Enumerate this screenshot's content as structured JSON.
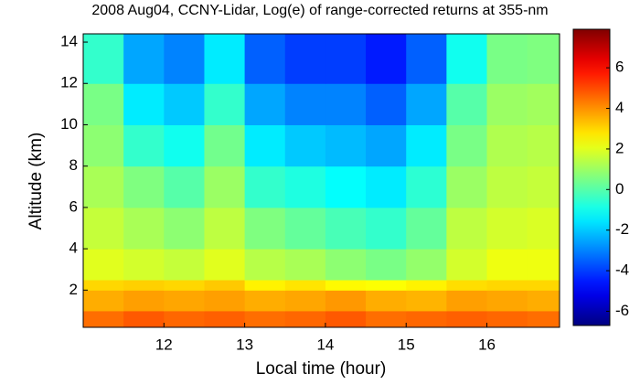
{
  "chart_data": {
    "type": "heatmap",
    "title": "2008 Aug04, CCNY-Lidar, Log(e) of range-corrected returns at 355-nm",
    "x_label": "Local time (hour)",
    "y_label": "Altitude (km)",
    "xlim": [
      11.0,
      16.9
    ],
    "ylim": [
      0.2,
      14.4
    ],
    "xticks": [
      12,
      13,
      14,
      15,
      16
    ],
    "yticks": [
      2,
      4,
      6,
      8,
      10,
      12,
      14
    ],
    "x_edges": [
      11.0,
      11.5,
      12.0,
      12.5,
      13.0,
      13.5,
      14.0,
      14.5,
      15.0,
      15.5,
      16.0,
      16.5,
      16.9
    ],
    "y_edges": [
      0.2,
      1,
      2,
      2.5,
      4,
      6,
      8,
      10,
      12,
      14.4
    ],
    "values": [
      [
        4.5,
        4.8,
        4.6,
        4.7,
        4.5,
        4.6,
        4.8,
        4.5,
        4.6,
        4.7,
        4.6,
        4.5
      ],
      [
        3.6,
        3.8,
        3.7,
        3.8,
        3.6,
        3.7,
        3.9,
        3.6,
        3.5,
        3.8,
        3.7,
        3.6
      ],
      [
        3,
        3.1,
        3,
        3.2,
        2.6,
        2.8,
        2.5,
        2.4,
        2.6,
        2.9,
        3,
        3
      ],
      [
        2,
        1.8,
        1.6,
        2,
        1.4,
        1.2,
        0.8,
        0.5,
        0.9,
        1.8,
        2.2,
        2.2
      ],
      [
        1.6,
        1.2,
        0.8,
        1.5,
        0.6,
        0.2,
        -0.2,
        -0.5,
        0.2,
        1.5,
        1.8,
        1.9
      ],
      [
        1.2,
        0.6,
        0,
        1,
        -0.5,
        -0.8,
        -1.2,
        -1.5,
        -0.6,
        1,
        1.5,
        1.6
      ],
      [
        0.8,
        -0.5,
        -1,
        0.4,
        -1.5,
        -2,
        -2.2,
        -2.5,
        -1.5,
        0.5,
        1.3,
        1.4
      ],
      [
        0.5,
        -1.5,
        -2,
        -0.5,
        -2.5,
        -3,
        -3,
        -3.5,
        -2.5,
        0,
        1,
        1.1
      ],
      [
        -0.5,
        -2.5,
        -3,
        -1.5,
        -3.5,
        -4,
        -4,
        -4.5,
        -3.5,
        -1,
        0.5,
        0.6
      ]
    ],
    "colormap": "jet",
    "clim": [
      -6.7,
      7.9
    ],
    "cticks": [
      -6,
      -4,
      -2,
      0,
      2,
      4,
      6
    ]
  }
}
